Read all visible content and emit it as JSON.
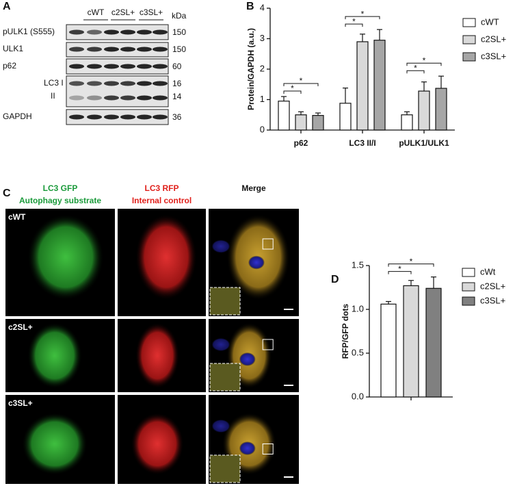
{
  "panel_labels": [
    "A",
    "B",
    "C",
    "D"
  ],
  "blot": {
    "groups": [
      "cWT",
      "c2SL+",
      "c3SL+"
    ],
    "unit": "kDa",
    "rows": [
      {
        "label": "pULK1 (S555)",
        "kda": 150
      },
      {
        "label": "ULK1",
        "kda": 150
      },
      {
        "label": "p62",
        "kda": 60
      },
      {
        "label": "LC3 I",
        "kda": 16
      },
      {
        "label": "II",
        "kda": 14
      },
      {
        "label": "GAPDH",
        "kda": 36
      }
    ]
  },
  "microscopy": {
    "columns": [
      {
        "title": "LC3 GFP",
        "subtitle": "Autophagy substrate"
      },
      {
        "title": "LC3 RFP",
        "subtitle": "Internal control"
      },
      {
        "title": "Merge"
      }
    ],
    "rows": [
      "cWT",
      "c2SL+",
      "c3SL+"
    ]
  },
  "chart_data": [
    {
      "type": "bar",
      "y_label": "Protein/GAPDH (a.u.)",
      "categories": [
        "p62",
        "LC3 II/I",
        "pULK1/ULK1"
      ],
      "series": [
        {
          "name": "cWT",
          "color": "#ffffff",
          "values": [
            0.95,
            0.88,
            0.5
          ],
          "errors": [
            0.15,
            0.5,
            0.1
          ]
        },
        {
          "name": "c2SL+",
          "color": "#d9d9d9",
          "values": [
            0.5,
            2.9,
            1.28
          ],
          "errors": [
            0.1,
            0.25,
            0.3
          ]
        },
        {
          "name": "c3SL+",
          "color": "#a6a6a6",
          "values": [
            0.48,
            2.95,
            1.37
          ],
          "errors": [
            0.08,
            0.35,
            0.4
          ]
        }
      ],
      "significance": [
        [
          "*",
          "*"
        ],
        [
          "*",
          "*"
        ],
        [
          "*",
          "*"
        ]
      ],
      "ylim": [
        0,
        4
      ],
      "yticks": [
        0,
        1,
        2,
        3,
        4
      ],
      "legend": "right"
    },
    {
      "type": "bar",
      "y_label": "RFP/GFP dots",
      "categories": [
        null
      ],
      "series": [
        {
          "name": "cWt",
          "color": "#ffffff",
          "values": [
            1.06
          ],
          "errors": [
            0.03
          ]
        },
        {
          "name": "c2SL+",
          "color": "#d9d9d9",
          "values": [
            1.27
          ],
          "errors": [
            0.06
          ]
        },
        {
          "name": "c3SL+",
          "color": "#808080",
          "values": [
            1.24
          ],
          "errors": [
            0.13
          ]
        }
      ],
      "significance": [
        [
          "*",
          "*"
        ]
      ],
      "ylim": [
        0,
        1.5
      ],
      "yticks": [
        {
          "value": 0,
          "label": "0.0"
        },
        {
          "value": 0.5,
          "label": "0.5"
        },
        {
          "value": 1,
          "label": "1.0"
        },
        1.5
      ],
      "legend": "right"
    }
  ]
}
